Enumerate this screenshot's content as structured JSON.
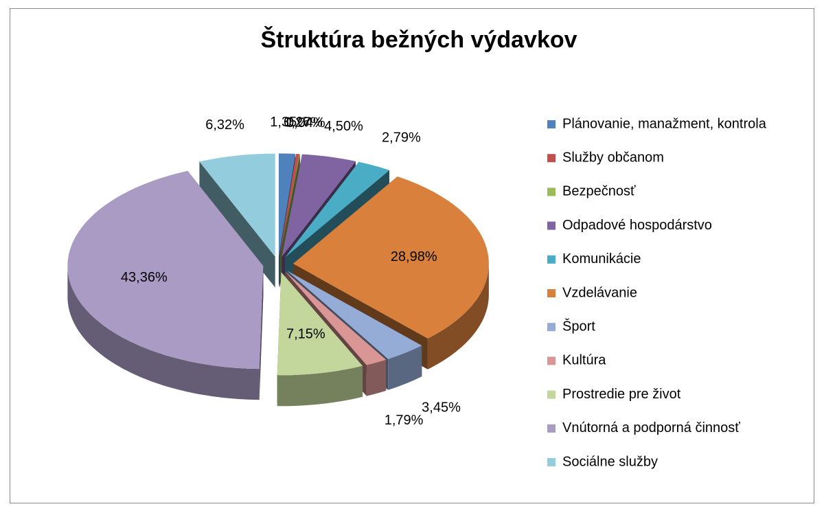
{
  "chart_data": {
    "type": "pie3d",
    "title": "Štruktúra bežných výdavkov",
    "categories": [
      "Plánovanie, manažment, kontrola",
      "Služby občanom",
      "Bezpečnosť",
      "Odpadové hospodárstvo",
      "Komunikácie",
      "Vzdelávanie",
      "Šport",
      "Kultúra",
      "Prostredie pre život",
      "Vnútorná a podporná činnosť",
      "Sociálne služby"
    ],
    "values": [
      1.35,
      0.27,
      0.04,
      4.5,
      2.79,
      28.98,
      3.45,
      1.79,
      7.15,
      43.36,
      6.32
    ],
    "value_labels": [
      "1,35%",
      "0,27%",
      "0,04%",
      "4,50%",
      "2,79%",
      "28,98%",
      "3,45%",
      "1,79%",
      "7,15%",
      "43,36%",
      "6,32%"
    ],
    "colors": [
      "#4f81bd",
      "#c0504d",
      "#9bbb59",
      "#8064a2",
      "#4bacc6",
      "#d8803c",
      "#95acd6",
      "#d99694",
      "#c3d69b",
      "#a99bc4",
      "#93cddd"
    ],
    "legend": "right"
  }
}
